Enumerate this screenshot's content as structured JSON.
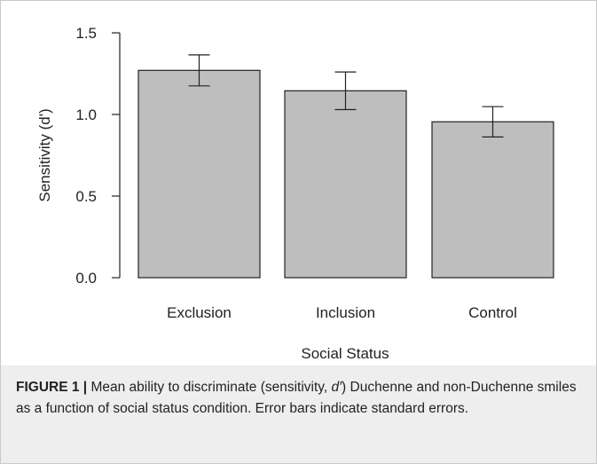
{
  "chart_data": {
    "type": "bar",
    "categories": [
      "Exclusion",
      "Inclusion",
      "Control"
    ],
    "values": [
      1.27,
      1.145,
      0.955
    ],
    "error": [
      0.095,
      0.115,
      0.093
    ],
    "xlabel": "Social Status",
    "ylabel": "Sensitivity (d')",
    "ylim": [
      0,
      1.5
    ],
    "yticks": [
      "0.0",
      "0.5",
      "1.0",
      "1.5"
    ],
    "grid": false,
    "bar_color": "#bebebe",
    "edge_color": "#222222"
  },
  "caption": {
    "label": "FIGURE 1 |",
    "text_before": "Mean ability to discriminate (sensitivity,",
    "symbol": "d′",
    "text_after": ") Duchenne and non-Duchenne smiles as a function of social status condition. Error bars indicate standard errors."
  }
}
